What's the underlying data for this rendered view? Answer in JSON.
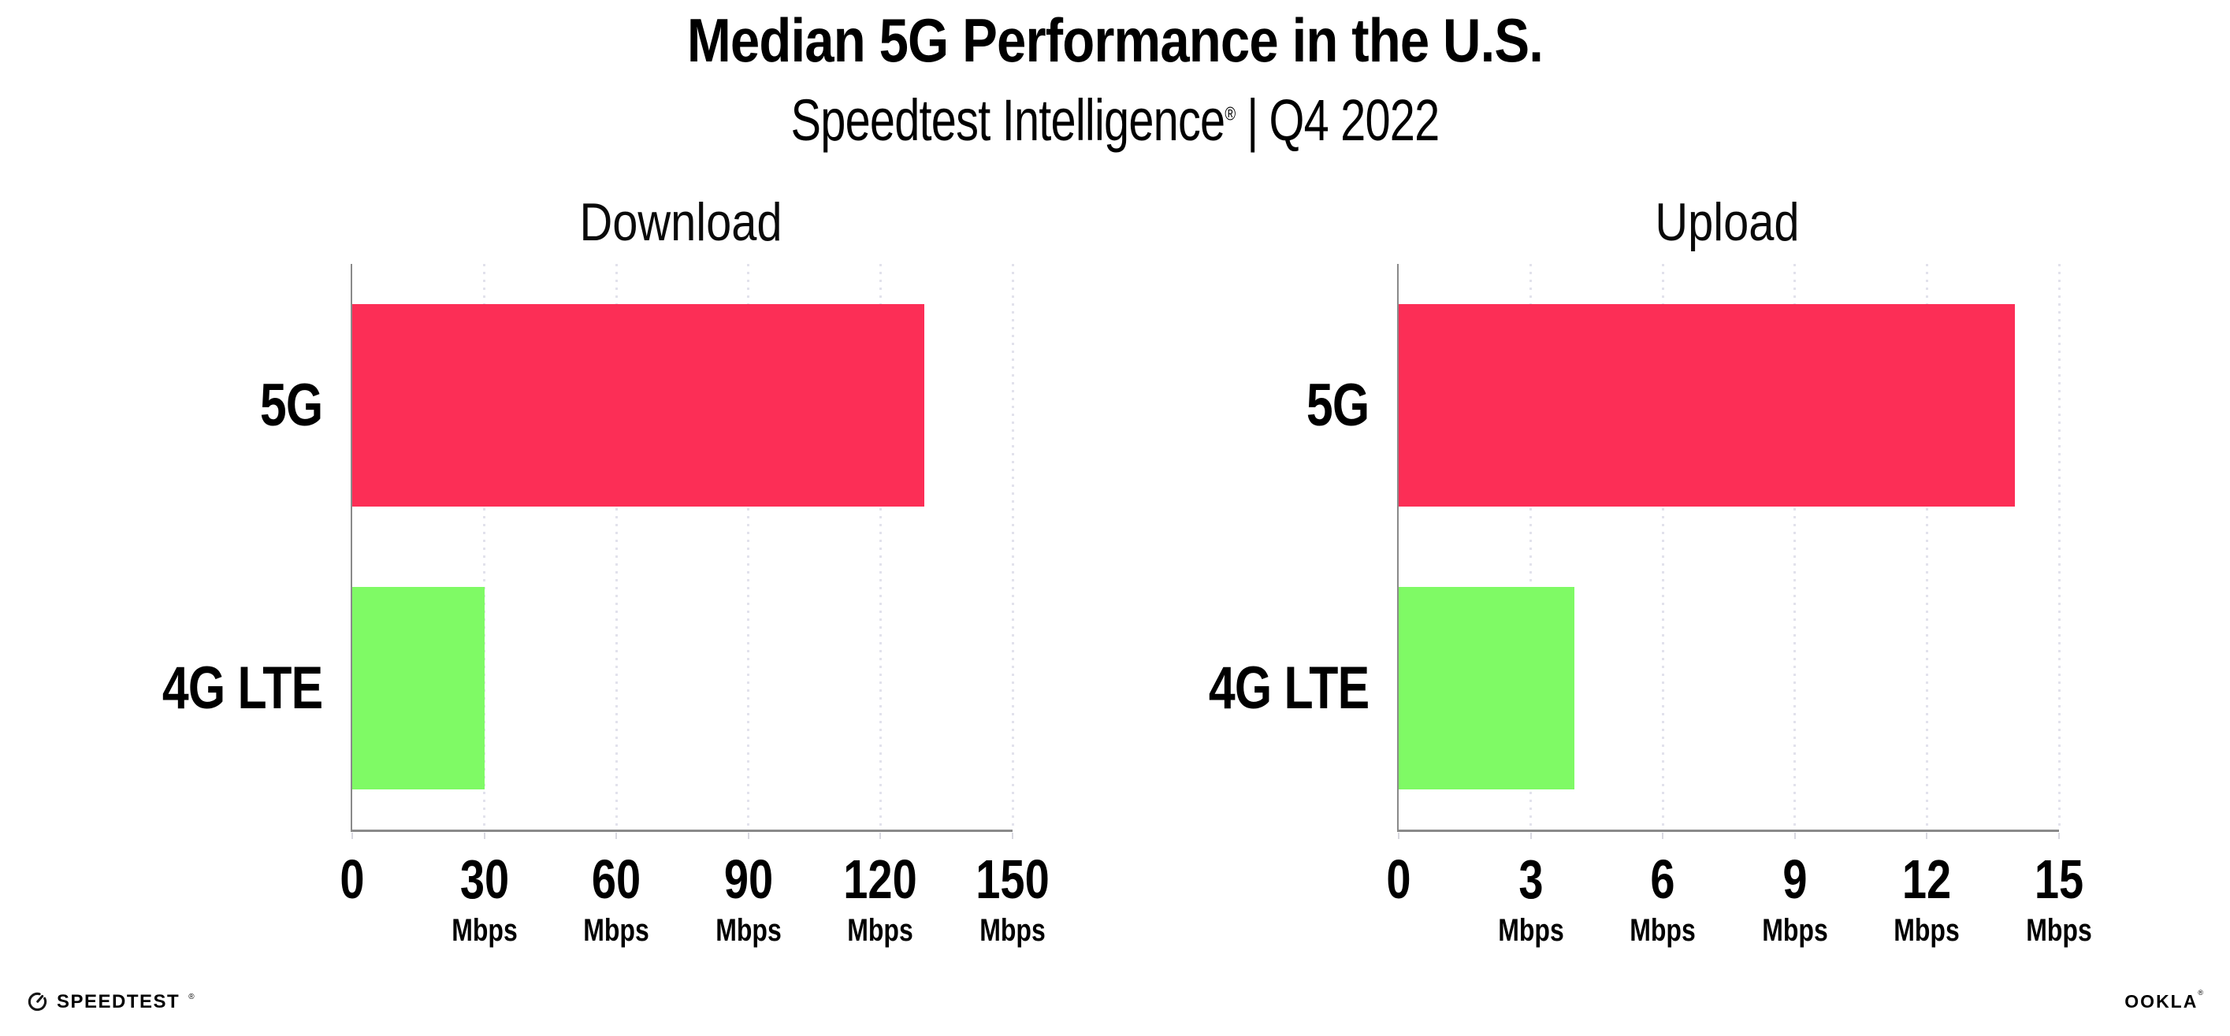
{
  "header": {
    "title": "Median 5G Performance in the U.S.",
    "product": "Speedtest Intelligence",
    "registered_mark": "®",
    "separator": "|",
    "period": "Q4 2022"
  },
  "footer": {
    "speedtest_wordmark": "SPEEDTEST",
    "speedtest_mark": "®",
    "ookla_wordmark": "OOKLA",
    "ookla_mark": "®"
  },
  "colors": {
    "bar_5g": "#fc2e56",
    "bar_4g_lte": "#7ffa65",
    "gridline": "#e2e2ec",
    "axis": "#8a8a8a",
    "background": "#ffffff",
    "text": "#000000"
  },
  "chart_data": [
    {
      "type": "bar",
      "orientation": "horizontal",
      "title": "Download",
      "categories": [
        "5G",
        "4G LTE"
      ],
      "values": [
        130,
        30
      ],
      "unit": "Mbps",
      "bar_colors": [
        "#fc2e56",
        "#7ffa65"
      ],
      "xlim": [
        0,
        150
      ],
      "xticks": [
        0,
        30,
        60,
        90,
        120,
        150
      ],
      "grid": "dotted vertical gridlines at each tick",
      "legend": "none"
    },
    {
      "type": "bar",
      "orientation": "horizontal",
      "title": "Upload",
      "categories": [
        "5G",
        "4G LTE"
      ],
      "values": [
        14,
        4
      ],
      "unit": "Mbps",
      "bar_colors": [
        "#fc2e56",
        "#7ffa65"
      ],
      "xlim": [
        0,
        15
      ],
      "xticks": [
        0,
        3,
        6,
        9,
        12,
        15
      ],
      "grid": "dotted vertical gridlines at each tick",
      "legend": "none"
    }
  ]
}
